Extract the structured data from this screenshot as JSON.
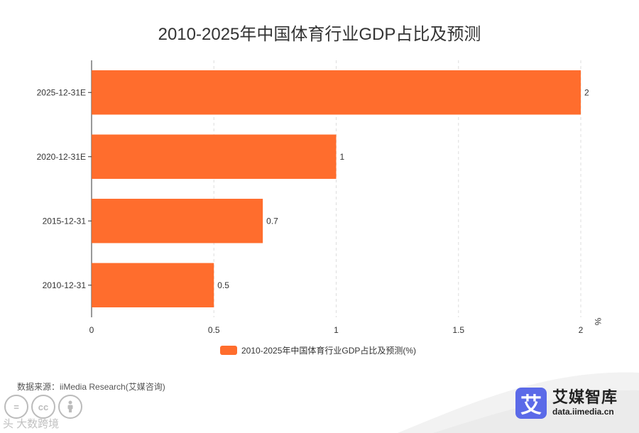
{
  "chart_data": {
    "type": "bar",
    "orientation": "horizontal",
    "title": "2010-2025年中国体育行业GDP占比及预测",
    "categories": [
      "2025-12-31E",
      "2020-12-31E",
      "2015-12-31",
      "2010-12-31"
    ],
    "series": [
      {
        "name": "2010-2025年中国体育行业GDP占比及预测(%)",
        "values": [
          2,
          1,
          0.7,
          0.5
        ]
      }
    ],
    "value_labels": [
      "2",
      "1",
      "0.7",
      "0.5"
    ],
    "x_ticks": [
      0,
      0.5,
      1,
      1.5,
      2
    ],
    "x_tick_labels": [
      "0",
      "0.5",
      "1",
      "1.5",
      "2"
    ],
    "xlim": [
      0,
      2
    ],
    "xlabel": "%",
    "ylabel": "",
    "grid": "vertical-dashed",
    "legend_position": "bottom",
    "bar_color": "#ff6d2d"
  },
  "source": "数据来源：iiMedia Research(艾媒咨询)",
  "brand": {
    "logo_char": "艾",
    "name": "艾媒智库",
    "url": "data.iimedia.cn",
    "color": "#5b6ae8"
  },
  "license": {
    "icons": [
      "=",
      "cc",
      "person-icon"
    ],
    "watermark": "头 大数跨境"
  }
}
